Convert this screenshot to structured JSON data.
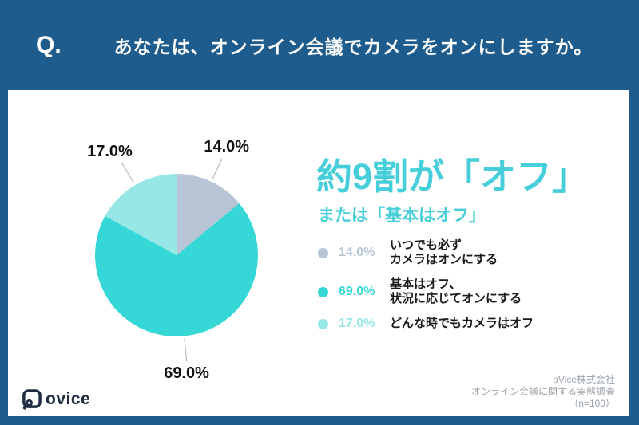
{
  "header": {
    "q_label": "Q.",
    "question": "あなたは、オンライン会議でカメラをオンにしますか。"
  },
  "headline": {
    "main": "約9割が「オフ」",
    "sub": "または「基本はオフ」"
  },
  "chart_data": {
    "type": "pie",
    "title": "約9割が「オフ」または「基本はオフ」",
    "legend_position": "right",
    "labels_outside": true,
    "start_angle_deg": 0,
    "direction": "clockwise",
    "slices": [
      {
        "label": "いつでも必ずカメラはオンにする",
        "label_lines": [
          "いつでも必ず",
          "カメラはオンにする"
        ],
        "value": 14.0,
        "display": "14.0%",
        "color": "#b7c5d6"
      },
      {
        "label": "基本はオフ、状況に応じてオンにする",
        "label_lines": [
          "基本はオフ、",
          "状況に応じてオンにする"
        ],
        "value": 69.0,
        "display": "69.0%",
        "color": "#36d7d7"
      },
      {
        "label": "どんな時でもカメラはオフ",
        "label_lines": [
          "どんな時でもカメラはオフ"
        ],
        "value": 17.0,
        "display": "17.0%",
        "color": "#97e7e7"
      }
    ]
  },
  "footer": {
    "logo_text": "ovice",
    "source_lines": [
      "oVice株式会社",
      "オンライン会議に関する実態調査",
      "（n=100）"
    ]
  },
  "colors": {
    "page_bg": "#1e5c8e",
    "card_bg": "#ffffff",
    "headline_teal": "#47cedb",
    "leader_line": "#b9bfc6",
    "text_dark": "#1a1a1a",
    "source_gray": "#9aa3ab",
    "logo_navy": "#202c42"
  }
}
